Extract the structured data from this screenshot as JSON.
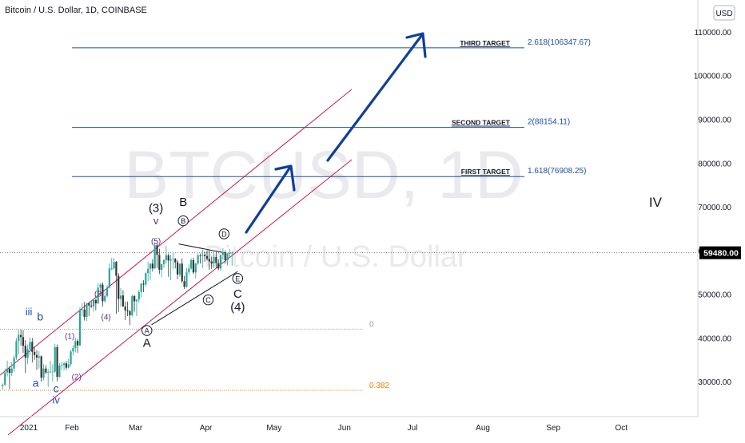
{
  "header": {
    "title": "Bitcoin / U.S. Dollar, 1D, COINBASE"
  },
  "currency_button": {
    "label": "USD"
  },
  "watermark": {
    "symbol": "BTCUSD, 1D",
    "name": "Bitcoin / U.S. Dollar"
  },
  "colors": {
    "bull_candle": "#26a69a",
    "bear_candle": "#333333",
    "channel": "#c2185b",
    "target_line": "#1e4ea6",
    "arrow": "#0d3f9e",
    "fib_0": "#999999",
    "fib_0382": "#f57c00",
    "wave_purple": "#5b2c83",
    "wave_blue": "#1e4ea6",
    "price_label_bg": "#000000"
  },
  "chart_data": {
    "type": "candlestick",
    "title": "Bitcoin / U.S. Dollar, 1D, COINBASE",
    "x_ticks": [
      "2021",
      "Feb",
      "Mar",
      "Apr",
      "May",
      "Jun",
      "Jul",
      "Aug",
      "Sep",
      "Oct"
    ],
    "y_ticks": [
      "110000.00",
      "100000.00",
      "90000.00",
      "80000.00",
      "70000.00",
      "60000.00",
      "50000.00",
      "40000.00",
      "30000.00"
    ],
    "ylim": [
      22000,
      114000
    ],
    "current_price": {
      "label": "59480.00",
      "value": 59480
    },
    "targets": [
      {
        "label": "FIRST TARGET",
        "fib": "1.618(76908.25)",
        "value": 76908.25
      },
      {
        "label": "SECOND TARGET",
        "fib": "2(88154.11)",
        "value": 88154.11
      },
      {
        "label": "THIRD TARGET",
        "fib": "2.618(106347.67)",
        "value": 106347.67
      }
    ],
    "fib_levels": [
      {
        "label": "0",
        "value": 42000
      },
      {
        "label": "0.382",
        "value": 28000
      }
    ],
    "wave_labels": [
      {
        "text": "(3)",
        "day": 68,
        "price": 68800,
        "color": "black",
        "size": 15
      },
      {
        "text": "v",
        "day": 68,
        "price": 66000,
        "color": "purple",
        "size": 13
      },
      {
        "text": "(5)",
        "day": 68,
        "price": 61500,
        "color": "purple",
        "size": 10
      },
      {
        "text": "B",
        "day": 80,
        "price": 70200,
        "color": "black",
        "size": 15
      },
      {
        "text": "(3)",
        "day": 43,
        "price": 49500,
        "color": "purple",
        "size": 10
      },
      {
        "text": "(4)",
        "day": 46,
        "price": 44200,
        "color": "purple",
        "size": 10
      },
      {
        "text": "(1)",
        "day": 30,
        "price": 39800,
        "color": "purple",
        "size": 10
      },
      {
        "text": "(2)",
        "day": 33,
        "price": 30500,
        "color": "purple",
        "size": 10
      },
      {
        "text": "iii",
        "day": 12,
        "price": 45200,
        "color": "blue",
        "size": 13
      },
      {
        "text": "b",
        "day": 17,
        "price": 44000,
        "color": "blue",
        "size": 14
      },
      {
        "text": "a",
        "day": 15,
        "price": 28800,
        "color": "blue",
        "size": 14
      },
      {
        "text": "c",
        "day": 24,
        "price": 27600,
        "color": "blue",
        "size": 14
      },
      {
        "text": "iv",
        "day": 24,
        "price": 25000,
        "color": "blue",
        "size": 13
      },
      {
        "text": "A",
        "day": 64,
        "price": 38000,
        "color": "black",
        "size": 15
      },
      {
        "text": "C",
        "day": 104,
        "price": 49200,
        "color": "black",
        "size": 15
      },
      {
        "text": "(4)",
        "day": 104,
        "price": 46200,
        "color": "black",
        "size": 15
      },
      {
        "text": "IV",
        "day": 288,
        "price": 70000,
        "color": "black",
        "size": 17
      }
    ],
    "circled_labels": [
      {
        "text": "B",
        "day": 80,
        "price": 66800
      },
      {
        "text": "D",
        "day": 98,
        "price": 63800
      },
      {
        "text": "C",
        "day": 91,
        "price": 48700
      },
      {
        "text": "E",
        "day": 104,
        "price": 53600
      },
      {
        "text": "A",
        "day": 64,
        "price": 41700
      }
    ],
    "candles": [
      [
        29000,
        29600,
        28200,
        29300
      ],
      [
        29300,
        33000,
        29000,
        32100
      ],
      [
        32100,
        34800,
        31200,
        33000
      ],
      [
        33000,
        33600,
        28300,
        32000
      ],
      [
        32000,
        34400,
        31300,
        33000
      ],
      [
        33000,
        36000,
        32300,
        35500
      ],
      [
        35500,
        40000,
        35000,
        39300
      ],
      [
        39300,
        41900,
        36300,
        40700
      ],
      [
        40700,
        41900,
        38200,
        40200
      ],
      [
        40200,
        41800,
        36600,
        38200
      ],
      [
        38200,
        39500,
        32000,
        35500
      ],
      [
        35500,
        38500,
        34000,
        37400
      ],
      [
        37400,
        40100,
        36100,
        39100
      ],
      [
        39100,
        40000,
        34400,
        36800
      ],
      [
        36800,
        37900,
        35000,
        36100
      ],
      [
        36100,
        37200,
        32700,
        35500
      ],
      [
        35500,
        37000,
        33000,
        35800
      ],
      [
        35800,
        36000,
        30000,
        30900
      ],
      [
        30900,
        34000,
        30300,
        33000
      ],
      [
        33000,
        33800,
        31700,
        32100
      ],
      [
        32100,
        32900,
        28800,
        32200
      ],
      [
        32200,
        34800,
        31900,
        32300
      ],
      [
        32300,
        34000,
        30000,
        32300
      ],
      [
        32300,
        38600,
        32000,
        37900
      ],
      [
        37900,
        38500,
        30100,
        31100
      ],
      [
        31100,
        34200,
        30900,
        33700
      ],
      [
        33700,
        34600,
        32700,
        33800
      ],
      [
        33800,
        34500,
        32600,
        34200
      ],
      [
        34200,
        34700,
        32700,
        33200
      ],
      [
        33200,
        35200,
        33000,
        34000
      ],
      [
        34000,
        37200,
        33500,
        36900
      ],
      [
        36900,
        38400,
        36000,
        37700
      ],
      [
        37700,
        40000,
        36700,
        39300
      ],
      [
        39300,
        39700,
        36600,
        38300
      ],
      [
        38300,
        47000,
        38200,
        46400
      ],
      [
        46400,
        48000,
        45000,
        46500
      ],
      [
        46500,
        48200,
        44000,
        44800
      ],
      [
        44800,
        48000,
        43900,
        47900
      ],
      [
        47900,
        48200,
        45000,
        47400
      ],
      [
        47400,
        48500,
        46800,
        47200
      ],
      [
        47200,
        49000,
        46000,
        48700
      ],
      [
        48700,
        48900,
        46300,
        47900
      ],
      [
        47900,
        52600,
        47800,
        51500
      ],
      [
        51500,
        52500,
        50500,
        52200
      ],
      [
        52200,
        52700,
        47200,
        48400
      ],
      [
        48400,
        50600,
        48100,
        49600
      ],
      [
        49600,
        52000,
        49300,
        51500
      ],
      [
        51500,
        57000,
        51300,
        55900
      ],
      [
        55900,
        58300,
        55500,
        55900
      ],
      [
        55900,
        58300,
        55600,
        57400
      ],
      [
        57400,
        57600,
        45500,
        54200
      ],
      [
        54200,
        54800,
        46000,
        48900
      ],
      [
        48900,
        51400,
        47100,
        49700
      ],
      [
        49700,
        50900,
        47100,
        47200
      ],
      [
        47200,
        48300,
        44100,
        46300
      ],
      [
        46300,
        48300,
        45000,
        46100
      ],
      [
        46100,
        46400,
        43000,
        45200
      ],
      [
        45200,
        49900,
        44900,
        49600
      ],
      [
        49600,
        49800,
        46000,
        48400
      ],
      [
        48400,
        48600,
        45000,
        48800
      ],
      [
        48800,
        51000,
        48000,
        50500
      ],
      [
        50500,
        52500,
        49300,
        52400
      ],
      [
        52400,
        53200,
        50500,
        52200
      ],
      [
        52200,
        55000,
        51800,
        54800
      ],
      [
        54800,
        57400,
        53000,
        55800
      ],
      [
        55800,
        57000,
        53200,
        57000
      ],
      [
        57000,
        58000,
        55200,
        55900
      ],
      [
        55900,
        61700,
        55800,
        61200
      ],
      [
        61200,
        61700,
        56000,
        59000
      ],
      [
        59000,
        60400,
        54600,
        55600
      ],
      [
        55600,
        56900,
        53900,
        56900
      ],
      [
        56900,
        58000,
        56000,
        57800
      ],
      [
        57800,
        61000,
        57000,
        58900
      ],
      [
        58900,
        59300,
        54000,
        57700
      ],
      [
        57700,
        59000,
        53200,
        58000
      ],
      [
        58000,
        59500,
        55800,
        58100
      ],
      [
        58100,
        58300,
        55900,
        57300
      ],
      [
        57300,
        57800,
        53400,
        54500
      ],
      [
        54500,
        57000,
        54000,
        57000
      ],
      [
        57000,
        58200,
        52600,
        53000
      ],
      [
        53000,
        54200,
        51200,
        51700
      ],
      [
        51700,
        56000,
        51500,
        55000
      ],
      [
        55000,
        56900,
        54400,
        55900
      ],
      [
        55900,
        58200,
        55600,
        57800
      ],
      [
        57800,
        58300,
        54600,
        55000
      ],
      [
        55000,
        57200,
        53600,
        57000
      ],
      [
        57000,
        59300,
        56700,
        58900
      ],
      [
        58900,
        59300,
        57000,
        58800
      ],
      [
        58800,
        60200,
        56000,
        59000
      ],
      [
        59000,
        59800,
        57400,
        58700
      ],
      [
        58700,
        60000,
        57700,
        58100
      ],
      [
        58100,
        60100,
        55600,
        57500
      ],
      [
        57500,
        58600,
        55800,
        57000
      ],
      [
        57000,
        60000,
        56000,
        58500
      ],
      [
        58500,
        60000,
        56000,
        57100
      ],
      [
        57100,
        58000,
        55500,
        55900
      ],
      [
        55900,
        59000,
        55300,
        59000
      ],
      [
        59000,
        60500,
        57900,
        59600
      ],
      [
        59600,
        60000,
        57000,
        57800
      ],
      [
        57800,
        59400,
        56700,
        59300
      ],
      [
        59300,
        60300,
        58400,
        59400
      ],
      [
        59400,
        59800,
        56500,
        59480
      ]
    ]
  }
}
